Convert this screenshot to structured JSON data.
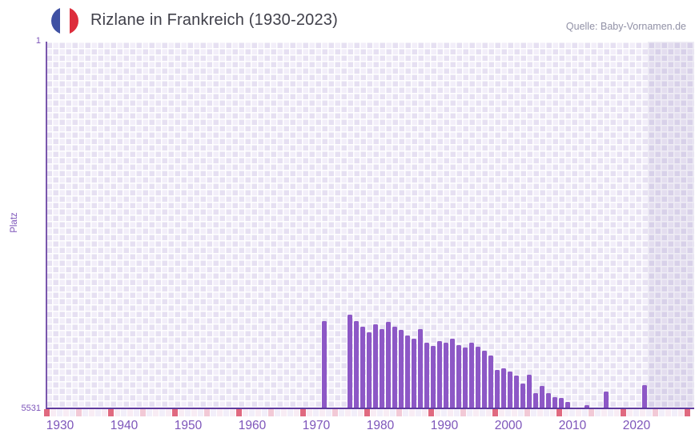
{
  "header": {
    "title": "Rizlane in Frankreich (1930-2023)",
    "source": "Quelle: Baby-Vornamen.de",
    "flag_icon": "france-flag-circle-icon"
  },
  "chart_data": {
    "type": "bar",
    "title": "Rizlane in Frankreich (1930-2023)",
    "xlabel": "",
    "ylabel": "Platz",
    "y_axis": {
      "min": 1,
      "max": 5531,
      "inverted": true,
      "top_label": "1",
      "bottom_label": "5531"
    },
    "x_ticks": [
      "1930",
      "1940",
      "1950",
      "1960",
      "1970",
      "1980",
      "1990",
      "2000",
      "2010",
      "2020"
    ],
    "x_range": [
      1928,
      2028
    ],
    "grid": true,
    "legend": false,
    "bars": [
      {
        "year": 1971,
        "rank": 4230
      },
      {
        "year": 1975,
        "rank": 4130
      },
      {
        "year": 1976,
        "rank": 4225
      },
      {
        "year": 1977,
        "rank": 4310
      },
      {
        "year": 1978,
        "rank": 4395
      },
      {
        "year": 1979,
        "rank": 4270
      },
      {
        "year": 1980,
        "rank": 4345
      },
      {
        "year": 1981,
        "rank": 4235
      },
      {
        "year": 1982,
        "rank": 4310
      },
      {
        "year": 1983,
        "rank": 4355
      },
      {
        "year": 1984,
        "rank": 4445
      },
      {
        "year": 1985,
        "rank": 4495
      },
      {
        "year": 1986,
        "rank": 4345
      },
      {
        "year": 1987,
        "rank": 4555
      },
      {
        "year": 1988,
        "rank": 4605
      },
      {
        "year": 1989,
        "rank": 4525
      },
      {
        "year": 1990,
        "rank": 4555
      },
      {
        "year": 1991,
        "rank": 4495
      },
      {
        "year": 1992,
        "rank": 4590
      },
      {
        "year": 1993,
        "rank": 4625
      },
      {
        "year": 1994,
        "rank": 4550
      },
      {
        "year": 1995,
        "rank": 4615
      },
      {
        "year": 1996,
        "rank": 4675
      },
      {
        "year": 1997,
        "rank": 4740
      },
      {
        "year": 1998,
        "rank": 4960
      },
      {
        "year": 1999,
        "rank": 4935
      },
      {
        "year": 2000,
        "rank": 4990
      },
      {
        "year": 2001,
        "rank": 5045
      },
      {
        "year": 2002,
        "rank": 5165
      },
      {
        "year": 2003,
        "rank": 5035
      },
      {
        "year": 2004,
        "rank": 5310
      },
      {
        "year": 2005,
        "rank": 5200
      },
      {
        "year": 2006,
        "rank": 5310
      },
      {
        "year": 2007,
        "rank": 5375
      },
      {
        "year": 2008,
        "rank": 5390
      },
      {
        "year": 2009,
        "rank": 5445
      },
      {
        "year": 2012,
        "rank": 5490
      },
      {
        "year": 2015,
        "rank": 5290
      },
      {
        "year": 2021,
        "rank": 5190
      }
    ],
    "colors": {
      "bar": "#8d58c6",
      "axis": "#5f3a9d",
      "tick_text": "#7d55ba",
      "title_text": "#3f3f49",
      "source_text": "#9191a6",
      "recent_band": "rgba(98,74,158,0.10)",
      "strip_dark": "#e0697f",
      "strip_medium": "#f2c9d6",
      "strip_pink": "#f8ecf4",
      "strip_lavender": "#f2eef9"
    },
    "recent_band_years": [
      2022,
      2029
    ]
  }
}
